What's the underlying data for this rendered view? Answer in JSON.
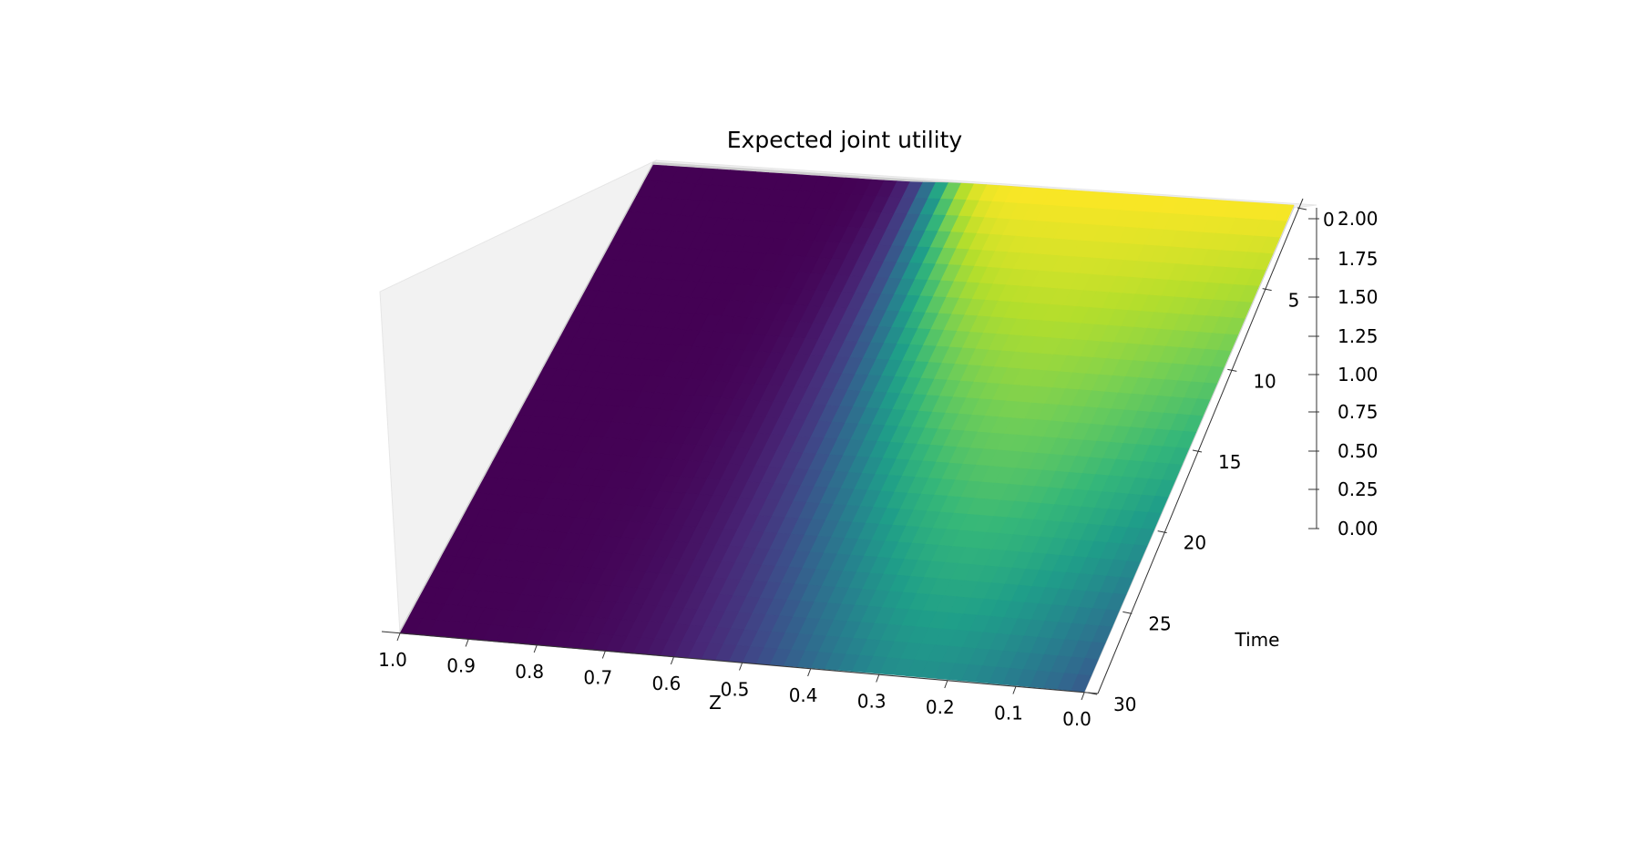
{
  "chart_data": {
    "type": "surface",
    "title": "Expected joint utility",
    "xlabel": "Z",
    "ylabel": "Time",
    "zlabel": "",
    "x_ticks": [
      "1.0",
      "0.9",
      "0.8",
      "0.7",
      "0.6",
      "0.5",
      "0.4",
      "0.3",
      "0.2",
      "0.1",
      "0.0"
    ],
    "y_ticks": [
      "0",
      "5",
      "10",
      "15",
      "20",
      "25",
      "30"
    ],
    "z_ticks": [
      "0.00",
      "0.25",
      "0.50",
      "0.75",
      "1.00",
      "1.25",
      "1.50",
      "1.75",
      "2.00"
    ],
    "xlim": [
      0,
      1
    ],
    "ylim": [
      0,
      30
    ],
    "zlim": [
      0,
      2
    ],
    "grid": true,
    "colormap": [
      "#440154",
      "#3b528b",
      "#21918c",
      "#5ec962",
      "#fde725"
    ],
    "surface_description": "Utility is 0 for Z above about 0.6 and rises steeply toward 2.0 for low Z; at Time 0 the surface has a vertical wall near Z=0.6, and at later times the transition is smoother, reaching about 2.0 at Z=0 and dipping toward about 1.0 at Z=0, Time 30.",
    "sample_rows": [
      {
        "time": 0,
        "z": [
          1.0,
          0.9,
          0.8,
          0.7,
          0.6,
          0.5,
          0.4,
          0.3,
          0.2,
          0.1,
          0.0
        ],
        "utility": [
          0,
          0,
          0,
          0,
          1.0,
          1.05,
          1.15,
          1.3,
          1.5,
          1.75,
          2.0
        ]
      },
      {
        "time": 15,
        "z": [
          1.0,
          0.9,
          0.8,
          0.7,
          0.6,
          0.5,
          0.4,
          0.3,
          0.2,
          0.1,
          0.0
        ],
        "utility": [
          0,
          0,
          0,
          0,
          0.05,
          0.6,
          1.4,
          1.7,
          1.75,
          1.7,
          1.65
        ]
      },
      {
        "time": 30,
        "z": [
          1.0,
          0.9,
          0.8,
          0.7,
          0.6,
          0.5,
          0.4,
          0.3,
          0.2,
          0.1,
          0.0
        ],
        "utility": [
          0,
          0,
          0,
          0,
          0.02,
          0.3,
          1.0,
          1.25,
          1.2,
          1.1,
          1.0
        ]
      }
    ]
  }
}
